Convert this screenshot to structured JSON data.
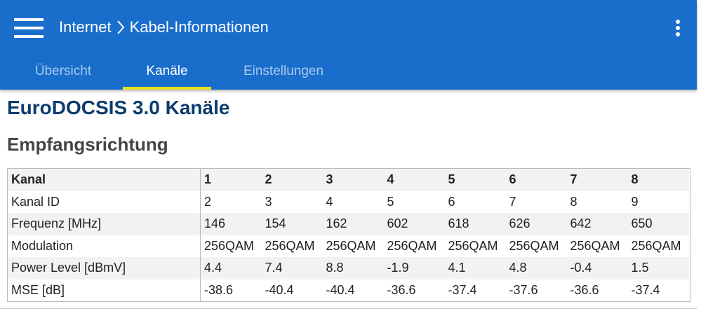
{
  "header": {
    "breadcrumb": [
      "Internet",
      "Kabel-Informationen"
    ]
  },
  "tabs": [
    {
      "label": "Übersicht",
      "active": false
    },
    {
      "label": "Kanäle",
      "active": true
    },
    {
      "label": "Einstellungen",
      "active": false
    }
  ],
  "title": "EuroDOCSIS 3.0 Kanäle",
  "subtitle": "Empfangsrichtung",
  "table": {
    "columns": [
      "Kanal",
      1,
      2,
      3,
      4,
      5,
      6,
      7,
      8
    ],
    "rows": [
      [
        "Kanal ID",
        2,
        3,
        4,
        5,
        6,
        7,
        8,
        9
      ],
      [
        "Frequenz [MHz]",
        146,
        154,
        162,
        602,
        618,
        626,
        642,
        650
      ],
      [
        "Modulation",
        "256QAM",
        "256QAM",
        "256QAM",
        "256QAM",
        "256QAM",
        "256QAM",
        "256QAM",
        "256QAM"
      ],
      [
        "Power Level [dBmV]",
        4.4,
        7.4,
        8.8,
        -1.9,
        4.1,
        4.8,
        -0.4,
        1.5
      ],
      [
        "MSE [dB]",
        -38.6,
        -40.4,
        -40.4,
        -36.6,
        -37.4,
        -37.6,
        -36.6,
        -37.4
      ]
    ]
  }
}
